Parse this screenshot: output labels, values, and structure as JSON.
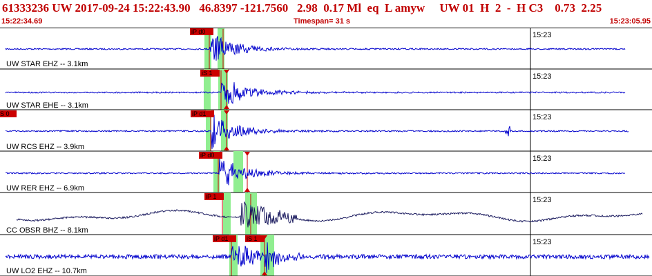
{
  "header": {
    "line": "61333236 UW 2017-09-24 15:22:43.90   46.8397 -121.7560   2.98  0.17 Ml  eq  L amyw     UW 01  H  2  -  H C3    0.73  2.25",
    "start_time": "15:22:34.69",
    "timespan": "Timespan=  31 s",
    "end_time": "15:23:05.95"
  },
  "colors": {
    "header_text": "#c00000",
    "trace": "#0000cc",
    "trace_broadband": "#1a1a5e",
    "pick_box": "#cc0000",
    "pick_window": "#90ee90",
    "pick_line": "#cc0000",
    "divider": "#000000"
  },
  "time_marker_label": "15:23",
  "channels": [
    {
      "label": "UW STAR EHZ -- 3.1km",
      "picks": [
        "iP d0"
      ],
      "theoretical": false,
      "style": "seismic"
    },
    {
      "label": "UW STAR EHE -- 3.1km",
      "picks": [
        "iS 1"
      ],
      "theoretical": true,
      "style": "seismic"
    },
    {
      "label": "UW RCS EHZ -- 3.9km",
      "picks": [
        "iP d1",
        "S 0"
      ],
      "theoretical": true,
      "style": "seismic_spike"
    },
    {
      "label": "UW RER EHZ -- 6.9km",
      "picks": [
        "iP d0"
      ],
      "theoretical": true,
      "style": "seismic"
    },
    {
      "label": "CC OBSR BHZ -- 8.1km",
      "picks": [
        "iP 1"
      ],
      "theoretical": false,
      "style": "broadband"
    },
    {
      "label": "UW LO2 EHZ -- 10.7km",
      "picks": [
        "iP d1",
        "iS 1"
      ],
      "theoretical": true,
      "style": "noisy"
    }
  ]
}
